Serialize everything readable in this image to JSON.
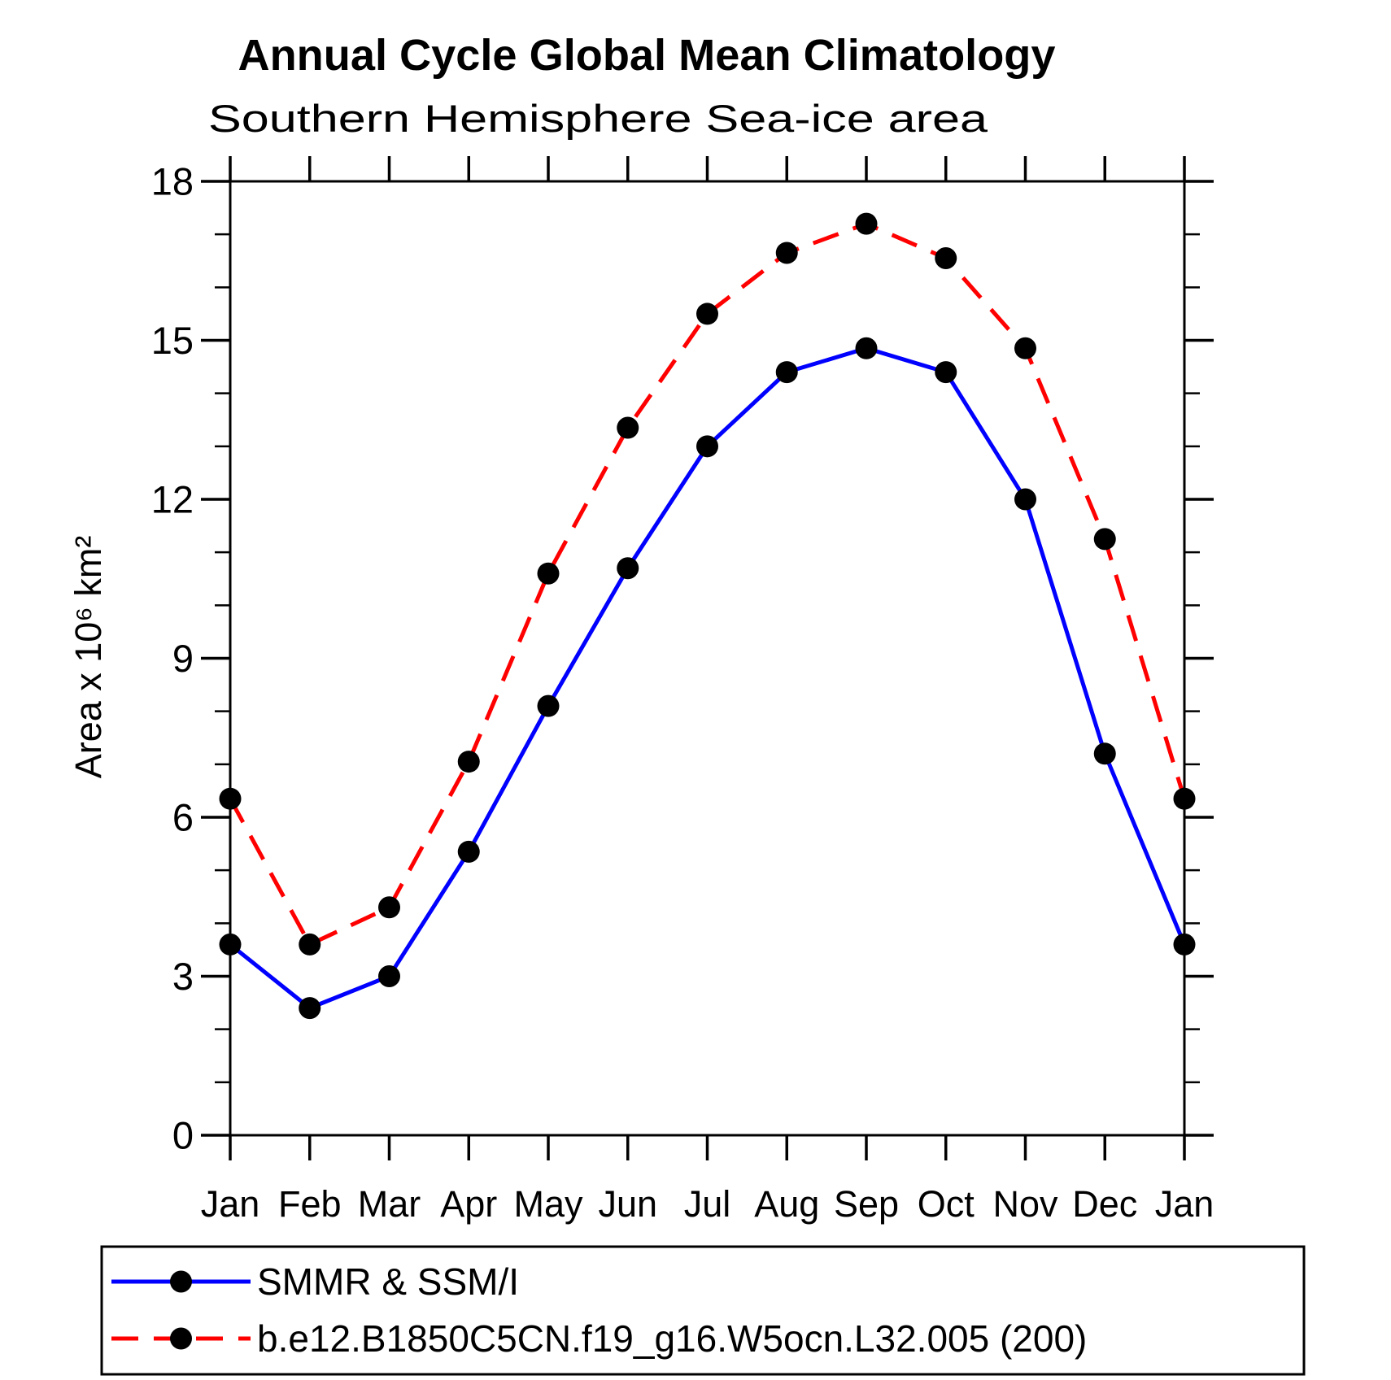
{
  "page": {
    "background_color": "#ffffff",
    "axis_color": "#000000",
    "text_color": "#000000"
  },
  "chart_data": {
    "type": "line",
    "title": "Annual Cycle Global Mean Climatology",
    "subtitle": "Southern Hemisphere Sea-ice area",
    "ylabel": "Area x 10⁶ km²",
    "xlabel": "",
    "categories": [
      "Jan",
      "Feb",
      "Mar",
      "Apr",
      "May",
      "Jun",
      "Jul",
      "Aug",
      "Sep",
      "Oct",
      "Nov",
      "Dec",
      "Jan"
    ],
    "ylim": [
      0,
      18
    ],
    "yticks_major": [
      0,
      3,
      6,
      9,
      12,
      15,
      18
    ],
    "yticks_minor_step": 1,
    "grid": false,
    "legend_position": "bottom",
    "series": [
      {
        "name": "SMMR & SSM/I",
        "color": "#0000ff",
        "style": "solid",
        "marker": "circle",
        "marker_color": "#000000",
        "values": [
          3.6,
          2.4,
          3.0,
          5.35,
          8.1,
          10.7,
          13.0,
          14.4,
          14.85,
          14.4,
          12.0,
          7.2,
          3.6
        ]
      },
      {
        "name": "b.e12.B1850C5CN.f19_g16.W5ocn.L32.005 (200)",
        "color": "#ff0000",
        "style": "dashed",
        "marker": "circle",
        "marker_color": "#000000",
        "values": [
          6.35,
          3.6,
          4.3,
          7.05,
          10.6,
          13.35,
          15.5,
          16.65,
          17.2,
          16.55,
          14.85,
          11.25,
          6.35
        ]
      }
    ]
  }
}
